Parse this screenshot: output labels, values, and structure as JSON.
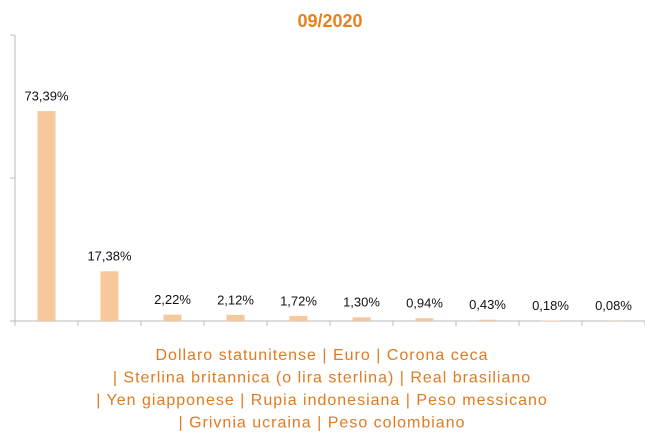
{
  "chart_data": {
    "type": "bar",
    "title": "09/2020",
    "categories": [
      null,
      null,
      null,
      null,
      null,
      null,
      null,
      null,
      null,
      null
    ],
    "values": [
      73.39,
      17.38,
      2.22,
      2.12,
      1.72,
      1.3,
      0.94,
      0.43,
      0.18,
      0.08
    ],
    "value_labels": [
      "73,39%",
      "17,38%",
      "2,22%",
      "2,12%",
      "1,72%",
      "1,30%",
      "0,94%",
      "0,43%",
      "0,18%",
      "0,08%"
    ],
    "color": "#f7c89b",
    "ylim": [
      0,
      100
    ],
    "yticks": [
      0,
      50,
      100
    ],
    "grid": false,
    "caption": [
      "Dollaro statunitense | Euro | Corona ceca",
      "| Sterlina britannica (o lira sterlina) | Real brasiliano",
      "| Yen giapponese | Rupia indonesiana | Peso messicano",
      "| Grivnia ucraina | Peso colombiano"
    ]
  }
}
